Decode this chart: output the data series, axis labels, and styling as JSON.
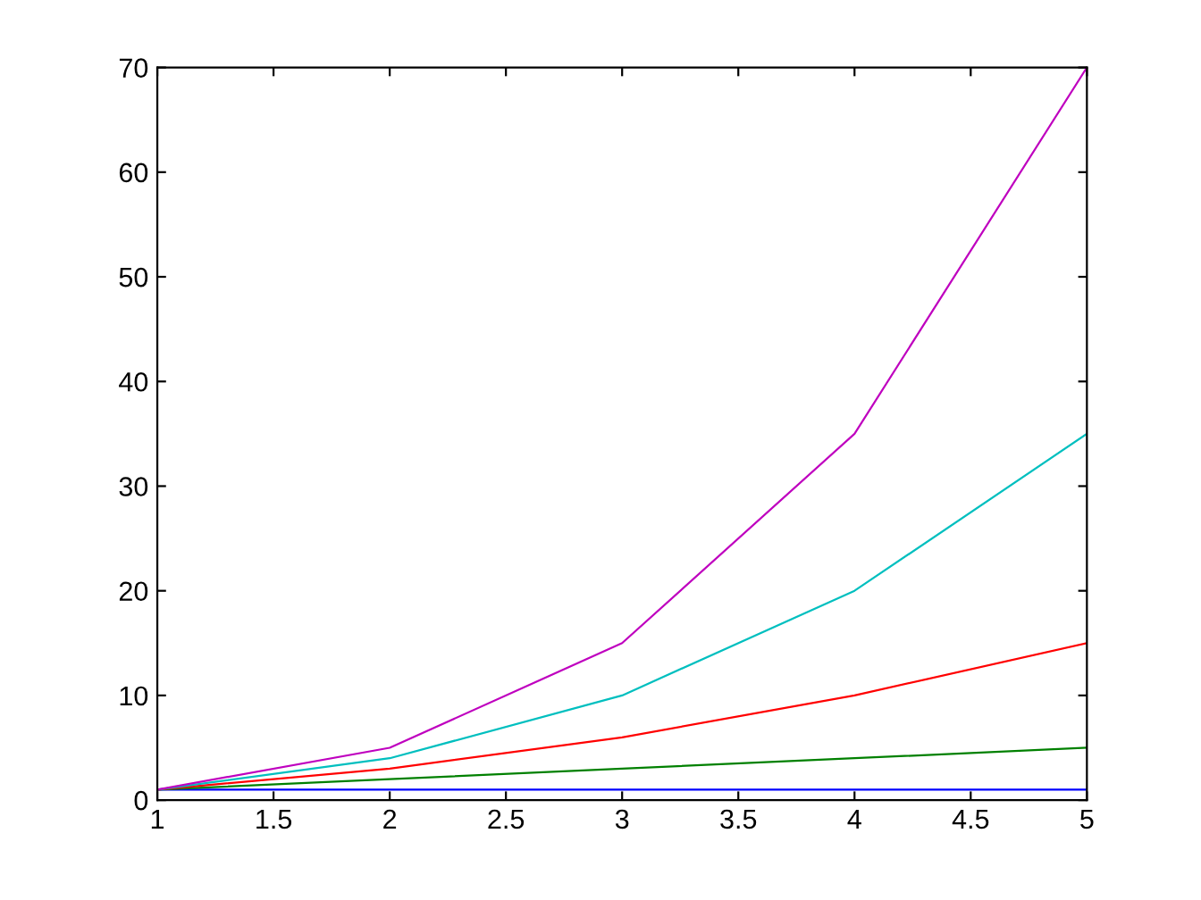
{
  "chart_data": {
    "type": "line",
    "x": [
      1,
      2,
      3,
      4,
      5
    ],
    "series": [
      {
        "color": "#0000ff",
        "values": [
          1,
          1,
          1,
          1,
          1
        ]
      },
      {
        "color": "#008000",
        "values": [
          1,
          2,
          3,
          4,
          5
        ]
      },
      {
        "color": "#ff0000",
        "values": [
          1,
          3,
          6,
          10,
          15
        ]
      },
      {
        "color": "#00bfbf",
        "values": [
          1,
          4,
          10,
          20,
          35
        ]
      },
      {
        "color": "#bf00bf",
        "values": [
          1,
          5,
          15,
          35,
          70
        ]
      }
    ],
    "xlim": [
      1,
      5
    ],
    "xticks": [
      1,
      1.5,
      2,
      2.5,
      3,
      3.5,
      4,
      4.5,
      5
    ],
    "ylim": [
      0,
      70
    ],
    "yticks": [
      0,
      10,
      20,
      30,
      40,
      50,
      60,
      70
    ],
    "grid": false,
    "legend": false
  }
}
